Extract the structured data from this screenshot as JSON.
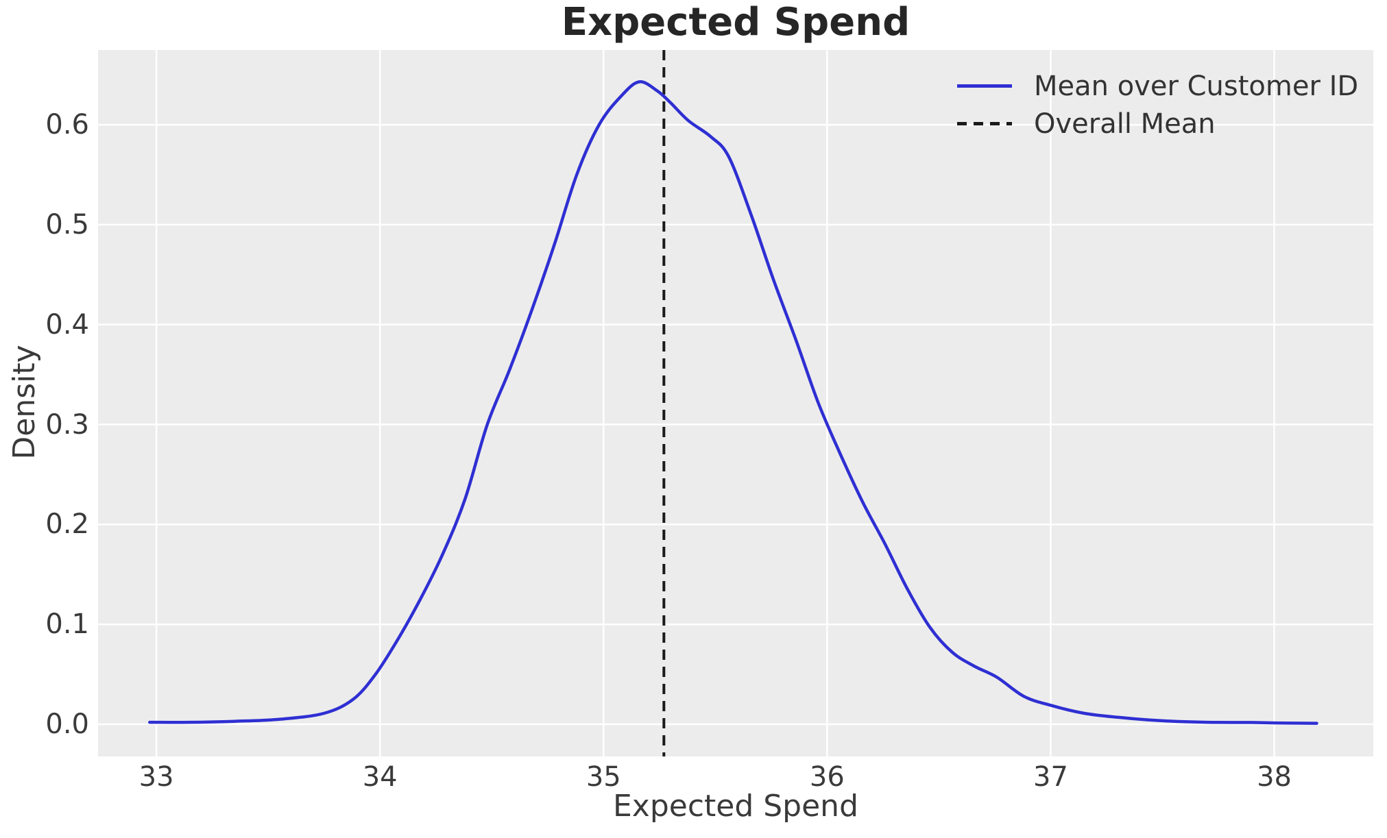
{
  "figure": {
    "title": "Expected Spend",
    "xlabel": "Expected Spend",
    "ylabel": "Density"
  },
  "legend": {
    "items": [
      {
        "label": "Mean over Customer ID",
        "swatch": "solid-blue-line"
      },
      {
        "label": "Overall Mean",
        "swatch": "dashed-black-line"
      }
    ]
  },
  "colors": {
    "plot_bg": "#ececec",
    "grid": "#ffffff",
    "kde_line": "#2f2fd3",
    "vline": "#1a1a1a",
    "title_text": "#262626",
    "label_text": "#3a3a3a"
  },
  "chart_data": {
    "type": "line",
    "subtype": "kde-density",
    "title": "Expected Spend",
    "xlabel": "Expected Spend",
    "ylabel": "Density",
    "grid": true,
    "legend_position": "upper right",
    "xlim": [
      32.739,
      38.443
    ],
    "ylim": [
      -0.0322,
      0.6748
    ],
    "x_ticks": [
      {
        "value": 33,
        "label": "33"
      },
      {
        "value": 34,
        "label": "34"
      },
      {
        "value": 35,
        "label": "35"
      },
      {
        "value": 36,
        "label": "36"
      },
      {
        "value": 37,
        "label": "37"
      },
      {
        "value": 38,
        "label": "38"
      }
    ],
    "y_ticks": [
      {
        "value": 0.0,
        "label": "0.0"
      },
      {
        "value": 0.1,
        "label": "0.1"
      },
      {
        "value": 0.2,
        "label": "0.2"
      },
      {
        "value": 0.3,
        "label": "0.3"
      },
      {
        "value": 0.4,
        "label": "0.4"
      },
      {
        "value": 0.5,
        "label": "0.5"
      },
      {
        "value": 0.6,
        "label": "0.6"
      }
    ],
    "series": [
      {
        "name": "Mean over Customer ID",
        "color": "#2f2fd3",
        "line_style": "solid",
        "peak": {
          "x": 35.16,
          "y": 0.643
        },
        "points": [
          [
            32.97,
            0.002
          ],
          [
            33.15,
            0.002
          ],
          [
            33.35,
            0.003
          ],
          [
            33.55,
            0.005
          ],
          [
            33.75,
            0.011
          ],
          [
            33.88,
            0.025
          ],
          [
            33.98,
            0.05
          ],
          [
            34.08,
            0.085
          ],
          [
            34.18,
            0.125
          ],
          [
            34.28,
            0.17
          ],
          [
            34.38,
            0.225
          ],
          [
            34.48,
            0.3
          ],
          [
            34.58,
            0.355
          ],
          [
            34.68,
            0.415
          ],
          [
            34.78,
            0.48
          ],
          [
            34.88,
            0.55
          ],
          [
            34.98,
            0.6
          ],
          [
            35.08,
            0.629
          ],
          [
            35.16,
            0.643
          ],
          [
            35.24,
            0.634
          ],
          [
            35.3,
            0.622
          ],
          [
            35.38,
            0.604
          ],
          [
            35.48,
            0.588
          ],
          [
            35.56,
            0.568
          ],
          [
            35.66,
            0.51
          ],
          [
            35.76,
            0.445
          ],
          [
            35.86,
            0.385
          ],
          [
            35.96,
            0.322
          ],
          [
            36.06,
            0.27
          ],
          [
            36.16,
            0.222
          ],
          [
            36.26,
            0.18
          ],
          [
            36.36,
            0.135
          ],
          [
            36.46,
            0.097
          ],
          [
            36.56,
            0.072
          ],
          [
            36.66,
            0.058
          ],
          [
            36.76,
            0.047
          ],
          [
            36.88,
            0.028
          ],
          [
            37.0,
            0.019
          ],
          [
            37.15,
            0.011
          ],
          [
            37.3,
            0.007
          ],
          [
            37.5,
            0.0035
          ],
          [
            37.7,
            0.002
          ],
          [
            37.9,
            0.0018
          ],
          [
            38.05,
            0.0012
          ],
          [
            38.19,
            0.001
          ]
        ]
      }
    ],
    "vline": {
      "name": "Overall Mean",
      "x": 35.27,
      "color": "#1a1a1a",
      "line_style": "dashed"
    }
  }
}
